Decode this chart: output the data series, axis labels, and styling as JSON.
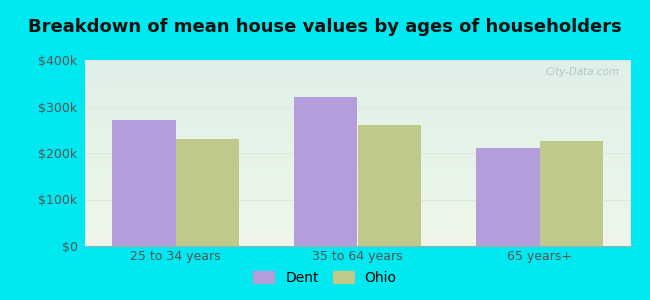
{
  "title": "Breakdown of mean house values by ages of householders",
  "categories": [
    "25 to 34 years",
    "35 to 64 years",
    "65 years+"
  ],
  "dent_values": [
    270000,
    320000,
    210000
  ],
  "ohio_values": [
    230000,
    260000,
    225000
  ],
  "dent_color": "#b39ddb",
  "ohio_color": "#bec98a",
  "bar_width": 0.35,
  "ylim": [
    0,
    400000
  ],
  "yticks": [
    0,
    100000,
    200000,
    300000,
    400000
  ],
  "ytick_labels": [
    "$0",
    "$100k",
    "$200k",
    "$300k",
    "$400k"
  ],
  "background_outer": "#00e8f0",
  "background_inner_top": "#dff0e8",
  "background_inner_bottom": "#eef7e8",
  "grid_color": "#d8ead8",
  "legend_labels": [
    "Dent",
    "Ohio"
  ],
  "title_fontsize": 13,
  "tick_fontsize": 9,
  "legend_fontsize": 10,
  "watermark": "City-Data.com"
}
